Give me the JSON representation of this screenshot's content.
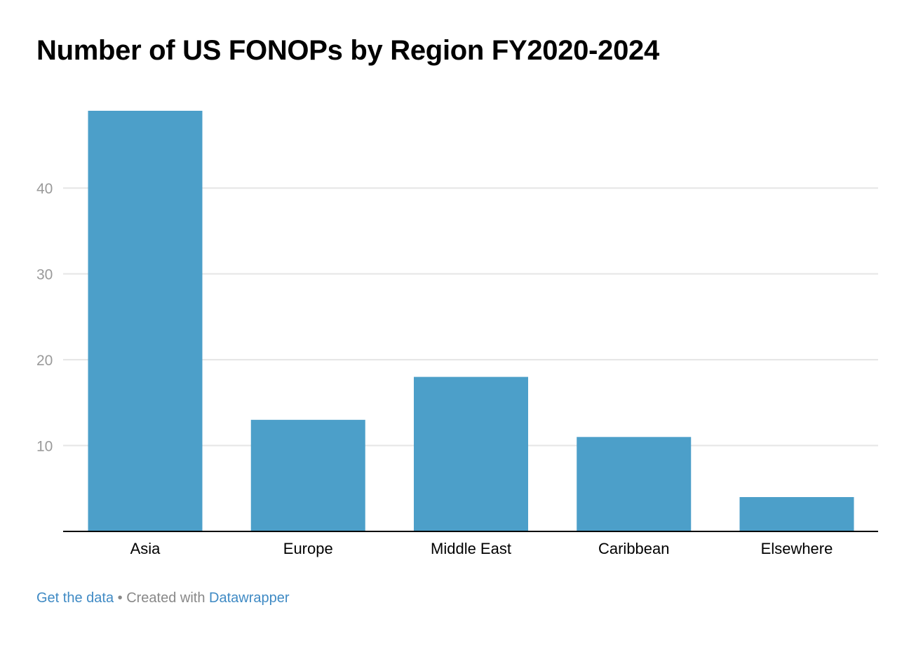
{
  "chart_data": {
    "type": "bar",
    "title": "Number of US FONOPs by Region FY2020-2024",
    "categories": [
      "Asia",
      "Europe",
      "Middle East",
      "Caribbean",
      "Elsewhere"
    ],
    "values": [
      49,
      13,
      18,
      11,
      4
    ],
    "xlabel": "",
    "ylabel": "",
    "ylim": [
      0,
      49
    ],
    "yticks": [
      10,
      20,
      30,
      40
    ],
    "grid": true,
    "legend": "none",
    "bar_color": "#4c9fc9",
    "grid_color": "#e5e5e5",
    "tick_label_color": "#9a9a9a",
    "axis_color": "#000000"
  },
  "footer": {
    "get_data_label": "Get the data",
    "separator": " • Created with ",
    "datawrapper_label": "Datawrapper",
    "link_color": "#3f8ac4",
    "text_color": "#888888"
  }
}
